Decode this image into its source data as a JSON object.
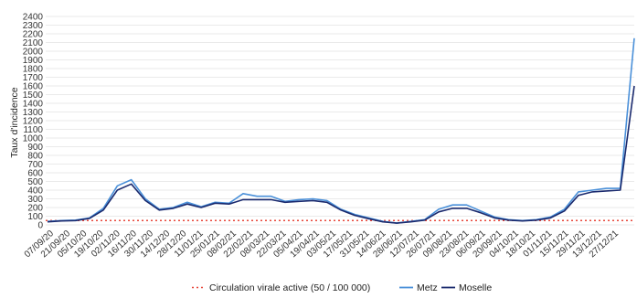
{
  "chart_data": {
    "type": "line",
    "title": "",
    "xlabel": "",
    "ylabel": "Taux d'incidence",
    "ylim": [
      0,
      2400
    ],
    "y_ticks": [
      0,
      100,
      200,
      300,
      400,
      500,
      600,
      700,
      800,
      900,
      1000,
      1100,
      1200,
      1300,
      1400,
      1500,
      1600,
      1700,
      1800,
      1900,
      2000,
      2100,
      2200,
      2300,
      2400
    ],
    "x_tick_labels": [
      "07/09/20",
      "21/09/20",
      "05/10/20",
      "19/10/20",
      "02/11/20",
      "16/11/20",
      "30/11/20",
      "14/12/20",
      "28/12/20",
      "11/01/21",
      "25/01/21",
      "08/02/21",
      "22/02/21",
      "08/03/21",
      "22/03/21",
      "05/04/21",
      "19/04/21",
      "03/05/21",
      "17/05/21",
      "31/05/21",
      "14/06/21",
      "28/06/21",
      "12/07/21",
      "26/07/21",
      "09/08/21",
      "23/08/21",
      "06/09/21",
      "20/09/21",
      "04/10/21",
      "18/10/21",
      "01/11/21",
      "15/11/21",
      "29/11/21",
      "13/12/21",
      "27/12/21"
    ],
    "grid": "horizontal",
    "legend_position": "bottom",
    "threshold": {
      "name": "Circulation virale active (50 / 100 000)",
      "value": 50,
      "color": "#e8473a"
    },
    "series": [
      {
        "name": "Metz",
        "color": "#4a90d9",
        "values": [
          40,
          50,
          55,
          80,
          190,
          450,
          520,
          300,
          180,
          200,
          260,
          210,
          260,
          250,
          360,
          330,
          330,
          270,
          290,
          300,
          280,
          180,
          120,
          80,
          40,
          20,
          40,
          60,
          180,
          230,
          230,
          160,
          90,
          60,
          50,
          60,
          90,
          180,
          380,
          400,
          420,
          420,
          2150
        ]
      },
      {
        "name": "Moselle",
        "color": "#1a2a6e",
        "values": [
          35,
          45,
          50,
          75,
          170,
          400,
          470,
          280,
          170,
          190,
          240,
          200,
          250,
          240,
          290,
          290,
          290,
          260,
          270,
          280,
          260,
          170,
          110,
          70,
          35,
          20,
          35,
          55,
          150,
          190,
          190,
          140,
          80,
          55,
          45,
          55,
          80,
          160,
          340,
          380,
          390,
          400,
          1600
        ]
      }
    ]
  }
}
